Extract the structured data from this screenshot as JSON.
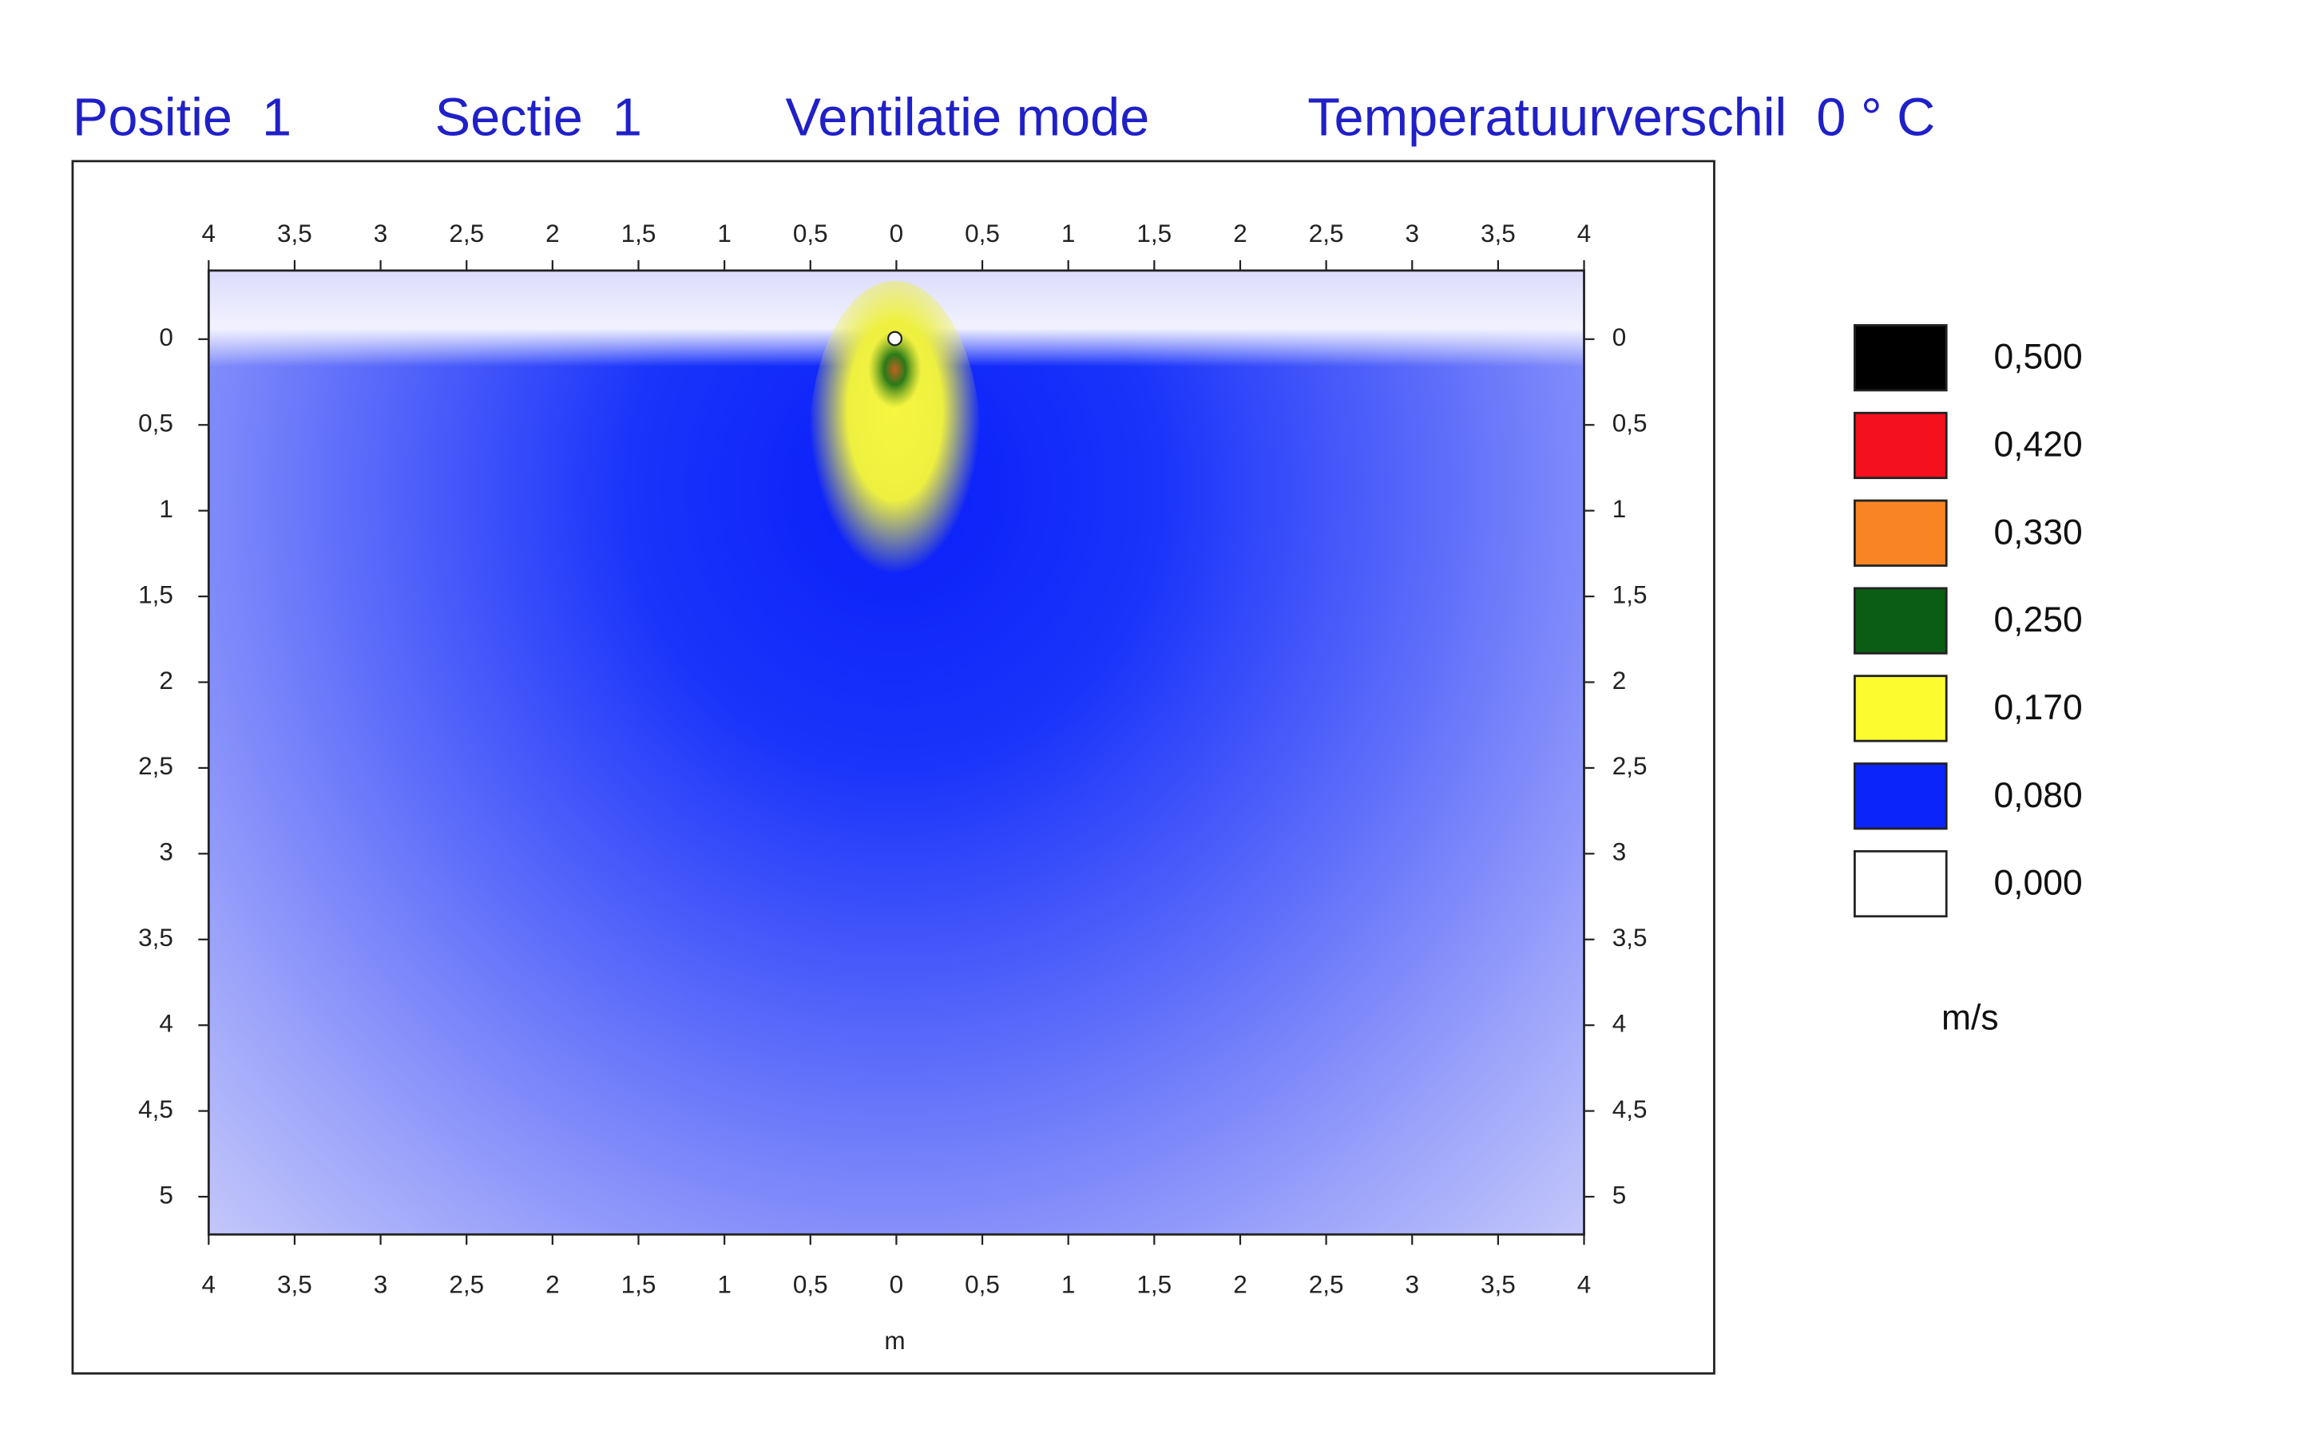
{
  "chart_data": {
    "type": "heatmap",
    "titles": [
      "Positie  1",
      "Sectie  1",
      "Ventilatie mode",
      "Temperatuurverschil  0 ° C"
    ],
    "x_label": "m",
    "xlim": [
      -4,
      4
    ],
    "xticks": [
      {
        "value": -4,
        "label": "4"
      },
      {
        "value": -3.5,
        "label": "3,5"
      },
      {
        "value": -3,
        "label": "3"
      },
      {
        "value": -2.5,
        "label": "2,5"
      },
      {
        "value": -2,
        "label": "2"
      },
      {
        "value": -1.5,
        "label": "1,5"
      },
      {
        "value": -1,
        "label": "1"
      },
      {
        "value": -0.5,
        "label": "0,5"
      },
      0,
      {
        "value": 0.5,
        "label": "0,5"
      },
      1,
      {
        "value": 1.5,
        "label": "1,5"
      },
      2,
      {
        "value": 2.5,
        "label": "2,5"
      },
      3,
      {
        "value": 3.5,
        "label": "3,5"
      },
      4
    ],
    "ylim": [
      -0.4,
      5.22
    ],
    "yticks": [
      0,
      {
        "value": 0.5,
        "label": "0,5"
      },
      1,
      {
        "value": 1.5,
        "label": "1,5"
      },
      2,
      {
        "value": 2.5,
        "label": "2,5"
      },
      3,
      {
        "value": 3.5,
        "label": "3,5"
      },
      4,
      {
        "value": 4.5,
        "label": "4,5"
      },
      5
    ],
    "colorbar": {
      "values": [
        0.5,
        0.42,
        0.33,
        0.25,
        0.17,
        0.08,
        0
      ],
      "value_labels": [
        "0,500",
        "0,420",
        "0,330",
        "0,250",
        "0,170",
        "0,080",
        "0,000"
      ],
      "colors": [
        "#000000",
        "#f5101e",
        "#f98424",
        "#0b5d14",
        "#fbfb30",
        "#0a24fa",
        "#ffffff"
      ],
      "unit": "m/s"
    }
  }
}
